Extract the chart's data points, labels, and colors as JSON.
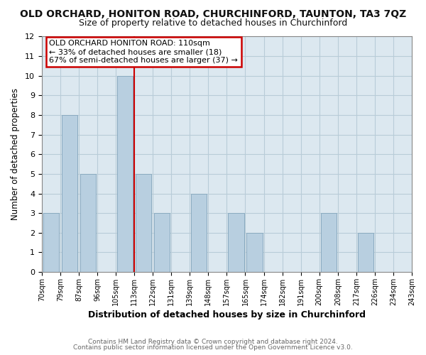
{
  "title": "OLD ORCHARD, HONITON ROAD, CHURCHINFORD, TAUNTON, TA3 7QZ",
  "subtitle": "Size of property relative to detached houses in Churchinford",
  "xlabel": "Distribution of detached houses by size in Churchinford",
  "ylabel": "Number of detached properties",
  "footer_line1": "Contains HM Land Registry data © Crown copyright and database right 2024.",
  "footer_line2": "Contains public sector information licensed under the Open Government Licence v3.0.",
  "bin_labels": [
    "70sqm",
    "79sqm",
    "87sqm",
    "96sqm",
    "105sqm",
    "113sqm",
    "122sqm",
    "131sqm",
    "139sqm",
    "148sqm",
    "157sqm",
    "165sqm",
    "174sqm",
    "182sqm",
    "191sqm",
    "200sqm",
    "208sqm",
    "217sqm",
    "226sqm",
    "234sqm",
    "243sqm"
  ],
  "bin_values": [
    3,
    8,
    5,
    0,
    10,
    5,
    3,
    0,
    4,
    0,
    3,
    2,
    0,
    0,
    0,
    3,
    0,
    2,
    0,
    0
  ],
  "ylim": [
    0,
    12
  ],
  "yticks": [
    0,
    1,
    2,
    3,
    4,
    5,
    6,
    7,
    8,
    9,
    10,
    11,
    12
  ],
  "bar_color": "#b8cfe0",
  "bar_edge_color": "#8aaac0",
  "marker_line_color": "#cc0000",
  "annotation_title": "OLD ORCHARD HONITON ROAD: 110sqm",
  "annotation_line1": "← 33% of detached houses are smaller (18)",
  "annotation_line2": "67% of semi-detached houses are larger (37) →",
  "annotation_box_color": "#ffffff",
  "annotation_box_edge_color": "#cc0000",
  "bg_color": "#ffffff",
  "plot_bg_color": "#dce8f0",
  "grid_color": "#b8ccd8",
  "title_fontsize": 10,
  "subtitle_fontsize": 9
}
